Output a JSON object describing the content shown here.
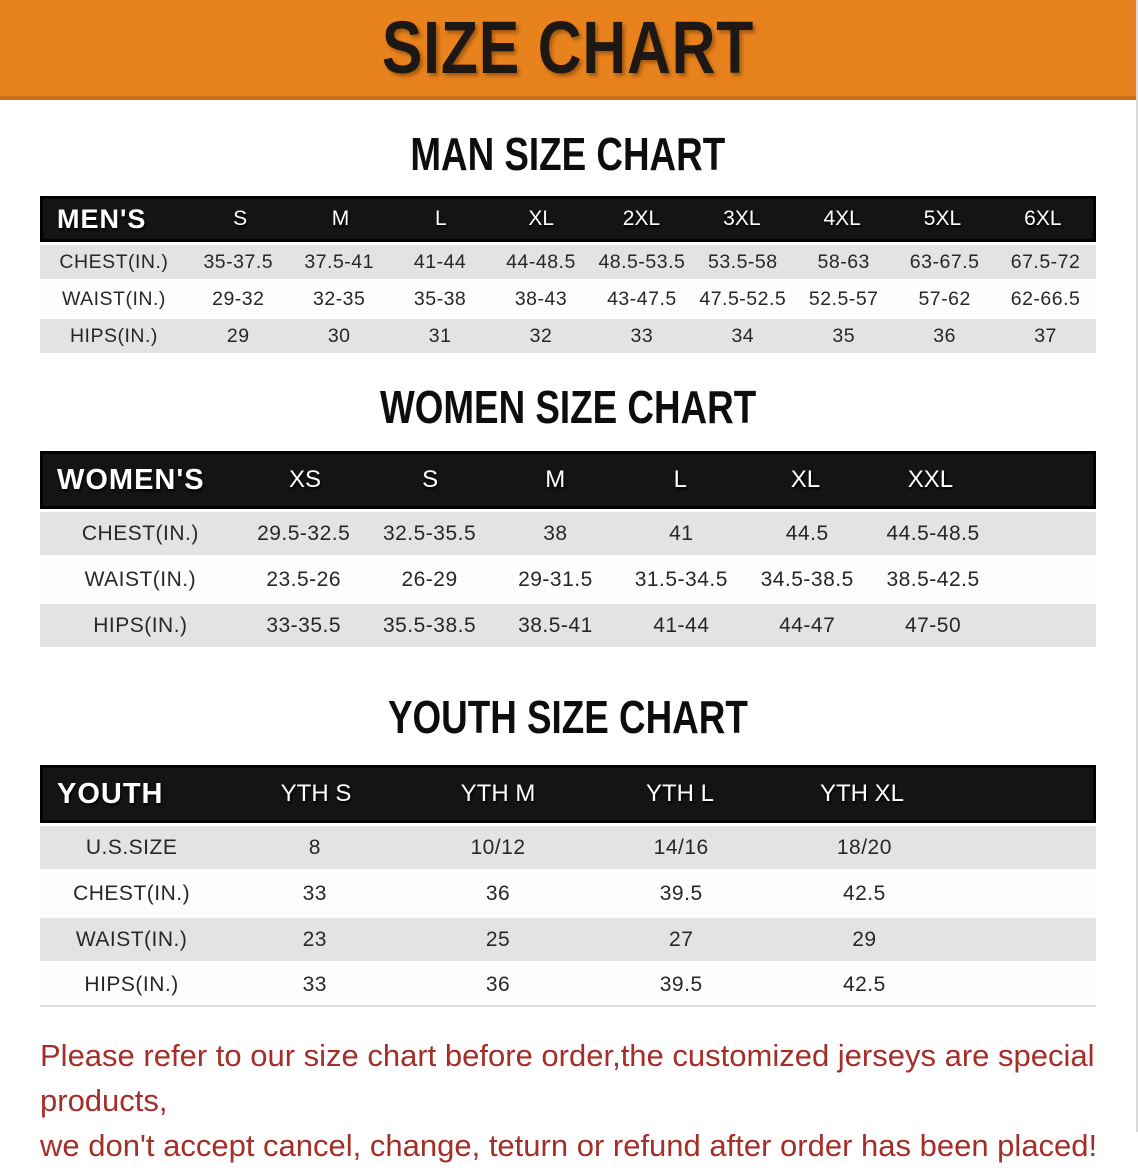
{
  "banner": {
    "title": "SIZE CHART",
    "bg_color": "#E8821C",
    "text_color": "#1D1813"
  },
  "sections": [
    {
      "title": "MAN SIZE CHART",
      "header_label": "MEN'S",
      "columns": [
        "S",
        "M",
        "L",
        "XL",
        "2XL",
        "3XL",
        "4XL",
        "5XL",
        "6XL"
      ],
      "rows": [
        {
          "label": "CHEST(IN.)",
          "values": [
            "35-37.5",
            "37.5-41",
            "41-44",
            "44-48.5",
            "48.5-53.5",
            "53.5-58",
            "58-63",
            "63-67.5",
            "67.5-72"
          ]
        },
        {
          "label": "WAIST(IN.)",
          "values": [
            "29-32",
            "32-35",
            "35-38",
            "38-43",
            "43-47.5",
            "47.5-52.5",
            "52.5-57",
            "57-62",
            "62-66.5"
          ]
        },
        {
          "label": "HIPS(IN.)",
          "values": [
            "29",
            "30",
            "31",
            "32",
            "33",
            "34",
            "35",
            "36",
            "37"
          ]
        }
      ]
    },
    {
      "title": "WOMEN SIZE CHART",
      "header_label": "WOMEN'S",
      "columns": [
        "XS",
        "S",
        "M",
        "L",
        "XL",
        "XXL"
      ],
      "rows": [
        {
          "label": "CHEST(IN.)",
          "values": [
            "29.5-32.5",
            "32.5-35.5",
            "38",
            "41",
            "44.5",
            "44.5-48.5"
          ]
        },
        {
          "label": "WAIST(IN.)",
          "values": [
            "23.5-26",
            "26-29",
            "29-31.5",
            "31.5-34.5",
            "34.5-38.5",
            "38.5-42.5"
          ]
        },
        {
          "label": "HIPS(IN.)",
          "values": [
            "33-35.5",
            "35.5-38.5",
            "38.5-41",
            "41-44",
            "44-47",
            "47-50"
          ]
        }
      ]
    },
    {
      "title": "YOUTH SIZE CHART",
      "header_label": "YOUTH",
      "columns": [
        "YTH S",
        "YTH M",
        "YTH L",
        "YTH XL"
      ],
      "rows": [
        {
          "label": "U.S.SIZE",
          "values": [
            "8",
            "10/12",
            "14/16",
            "18/20"
          ]
        },
        {
          "label": "CHEST(IN.)",
          "values": [
            "33",
            "36",
            "39.5",
            "42.5"
          ]
        },
        {
          "label": "WAIST(IN.)",
          "values": [
            "23",
            "25",
            "27",
            "29"
          ]
        },
        {
          "label": "HIPS(IN.)",
          "values": [
            "33",
            "36",
            "39.5",
            "42.5"
          ]
        }
      ]
    }
  ],
  "footer": {
    "line1": "Please refer to our size chart before order,the customized jerseys are special products,",
    "line2": "we don't accept cancel, change, teturn or refund after order has been placed!",
    "text_color": "#A52F28"
  },
  "colors": {
    "header_band": "#141414",
    "stripe_gray": "#E3E3E4",
    "stripe_white": "#FDFDFD"
  }
}
